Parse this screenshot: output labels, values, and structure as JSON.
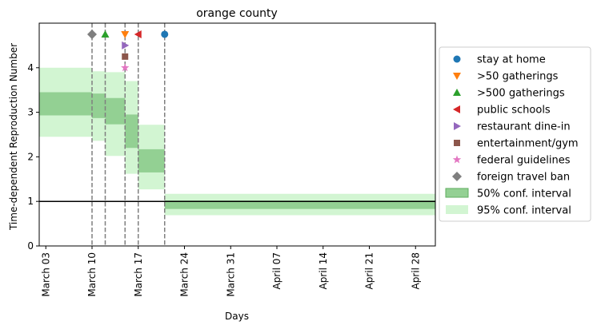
{
  "chart_data": {
    "type": "step",
    "title": "orange county",
    "xlabel": "Days",
    "ylabel": "Time-dependent Reproduction Number",
    "x_tick_labels": [
      "March 03",
      "March 10",
      "March 17",
      "March 24",
      "March 31",
      "April 07",
      "April 14",
      "April 21",
      "April 28"
    ],
    "x_tick_dates": [
      "2020-03-03",
      "2020-03-10",
      "2020-03-17",
      "2020-03-24",
      "2020-03-31",
      "2020-04-07",
      "2020-04-14",
      "2020-04-21",
      "2020-04-28"
    ],
    "xlim": [
      "2020-03-02",
      "2020-05-01"
    ],
    "y_ticks": [
      0,
      1,
      2,
      3,
      4
    ],
    "ylim": [
      0,
      5.0
    ],
    "reference_line_y": 1,
    "segments": [
      {
        "start": "2020-03-02",
        "end": "2020-03-10",
        "ci50": [
          2.93,
          3.45
        ],
        "ci95": [
          2.45,
          4.0
        ]
      },
      {
        "start": "2020-03-10",
        "end": "2020-03-12",
        "ci50": [
          2.87,
          3.42
        ],
        "ci95": [
          2.36,
          3.92
        ]
      },
      {
        "start": "2020-03-12",
        "end": "2020-03-15",
        "ci50": [
          2.73,
          3.32
        ],
        "ci95": [
          2.02,
          3.9
        ]
      },
      {
        "start": "2020-03-15",
        "end": "2020-03-17",
        "ci50": [
          2.2,
          2.95
        ],
        "ci95": [
          1.62,
          3.7
        ]
      },
      {
        "start": "2020-03-17",
        "end": "2020-03-21",
        "ci50": [
          1.65,
          2.17
        ],
        "ci95": [
          1.27,
          2.72
        ]
      },
      {
        "start": "2020-03-21",
        "end": "2020-05-01",
        "ci50": [
          0.83,
          1.02
        ],
        "ci95": [
          0.69,
          1.17
        ]
      }
    ],
    "interventions": [
      {
        "name": "stay at home",
        "date": "2020-03-21",
        "y": 4.75,
        "marker": "circle",
        "color": "#1f77b4"
      },
      {
        "name": ">50 gatherings",
        "date": "2020-03-15",
        "y": 4.75,
        "marker": "triangle-down",
        "color": "#ff7f0e"
      },
      {
        "name": ">500 gatherings",
        "date": "2020-03-12",
        "y": 4.75,
        "marker": "triangle-up",
        "color": "#2ca02c"
      },
      {
        "name": "public schools",
        "date": "2020-03-17",
        "y": 4.75,
        "marker": "triangle-left",
        "color": "#d62728"
      },
      {
        "name": "restaurant dine-in",
        "date": "2020-03-15",
        "y": 4.5,
        "marker": "triangle-right",
        "color": "#9467bd"
      },
      {
        "name": "entertainment/gym",
        "date": "2020-03-15",
        "y": 4.25,
        "marker": "square",
        "color": "#8c564b"
      },
      {
        "name": "federal guidelines",
        "date": "2020-03-15",
        "y": 4.0,
        "marker": "star",
        "color": "#e377c2"
      },
      {
        "name": "foreign travel ban",
        "date": "2020-03-10",
        "y": 4.75,
        "marker": "diamond",
        "color": "#7f7f7f"
      }
    ],
    "legend": {
      "placement": "right",
      "conf_labels": [
        "50% conf. interval",
        "95% conf. interval"
      ]
    },
    "colors": {
      "ci50_fill": "#93d093",
      "ci50_edge": "#5fae5f",
      "ci95_fill": "#d2f5d2",
      "reference_line": "#000000",
      "vline": "#7f7f7f"
    }
  }
}
